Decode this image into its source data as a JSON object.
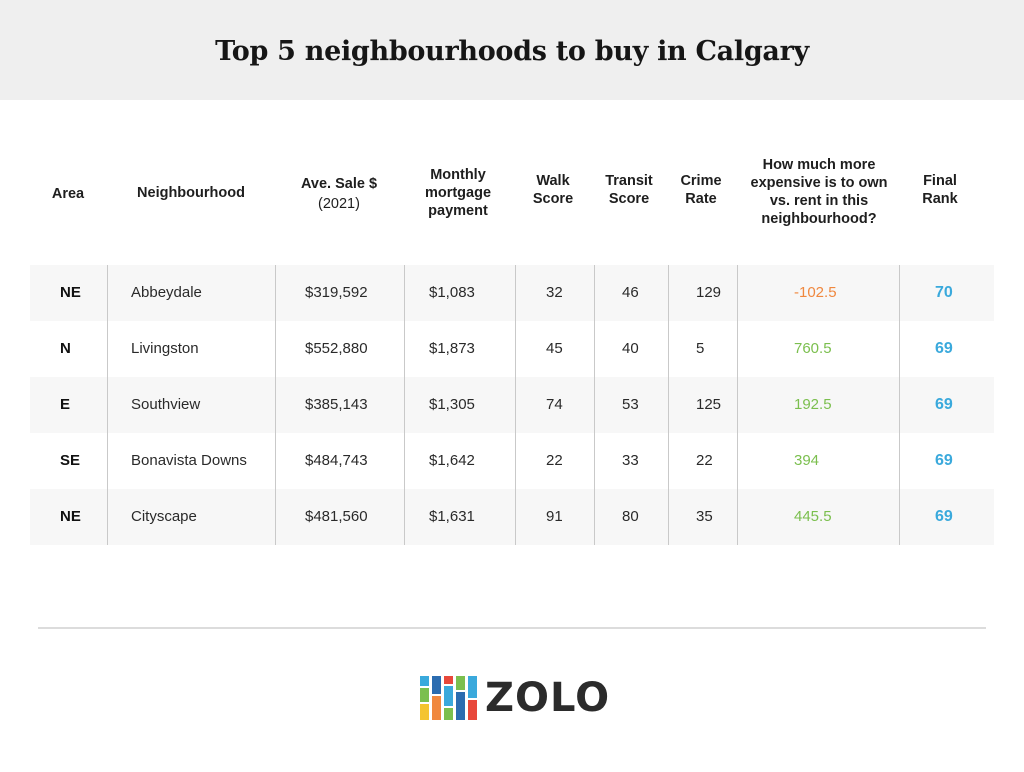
{
  "title": "Top 5 neighbourhoods to buy in Calgary",
  "headers": {
    "area": "Area",
    "neighbourhood": "Neighbourhood",
    "sale_line1": "Ave. Sale $",
    "sale_line2": "(2021)",
    "mortgage_line1": "Monthly",
    "mortgage_line2": "mortgage",
    "mortgage_line3": "payment",
    "walk_line1": "Walk",
    "walk_line2": "Score",
    "transit_line1": "Transit",
    "transit_line2": "Score",
    "crime_line1": "Crime",
    "crime_line2": "Rate",
    "expensive_line1": "How much more",
    "expensive_line2": "expensive is to own",
    "expensive_line3": "vs. rent in this",
    "expensive_line4": "neighbourhood?",
    "rank_line1": "Final",
    "rank_line2": "Rank"
  },
  "rows": [
    {
      "area": "NE",
      "neighbourhood": "Abbeydale",
      "sale": "$319,592",
      "mortgage": "$1,083",
      "walk": "32",
      "transit": "46",
      "crime": "129",
      "expensive": "-102.5",
      "rank": "70"
    },
    {
      "area": "N",
      "neighbourhood": "Livingston",
      "sale": "$552,880",
      "mortgage": "$1,873",
      "walk": "45",
      "transit": "40",
      "crime": "5",
      "expensive": "760.5",
      "rank": "69"
    },
    {
      "area": "E",
      "neighbourhood": "Southview",
      "sale": "$385,143",
      "mortgage": "$1,305",
      "walk": "74",
      "transit": "53",
      "crime": "125",
      "expensive": "192.5",
      "rank": "69"
    },
    {
      "area": "SE",
      "neighbourhood": "Bonavista Downs",
      "sale": "$484,743",
      "mortgage": "$1,642",
      "walk": "22",
      "transit": "33",
      "crime": "22",
      "expensive": "394",
      "rank": "69"
    },
    {
      "area": "NE",
      "neighbourhood": "Cityscape",
      "sale": "$481,560",
      "mortgage": "$1,631",
      "walk": "91",
      "transit": "80",
      "crime": "35",
      "expensive": "445.5",
      "rank": "69"
    }
  ],
  "colors": {
    "negative": "#f0883f",
    "positive": "#7bbf4e",
    "rank": "#3aa9dc"
  },
  "logo": {
    "text": "ZOLO",
    "icon": "zolo-bars-logo-icon"
  }
}
